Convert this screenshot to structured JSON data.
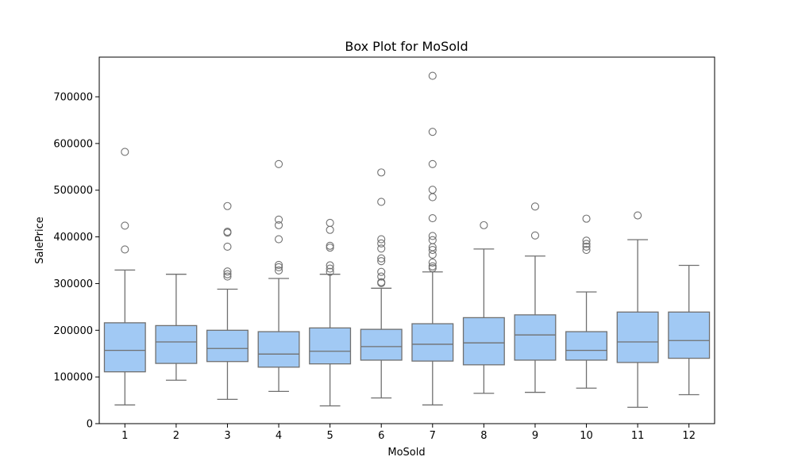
{
  "chart_data": {
    "type": "box",
    "title": "Box Plot for MoSold",
    "xlabel": "MoSold",
    "ylabel": "SalePrice",
    "categories": [
      "1",
      "2",
      "3",
      "4",
      "5",
      "6",
      "7",
      "8",
      "9",
      "10",
      "11",
      "12"
    ],
    "yticks": [
      0,
      100000,
      200000,
      300000,
      400000,
      500000,
      600000,
      700000
    ],
    "ylim": [
      0,
      785000
    ],
    "grid": false,
    "colors": {
      "box_fill": "#a1c9f4",
      "line": "#707070"
    },
    "boxes": [
      {
        "category": "1",
        "whisker_low": 40000,
        "q1": 111000,
        "median": 157000,
        "q3": 216000,
        "whisker_high": 329000,
        "outliers": [
          373000,
          424000,
          582000
        ]
      },
      {
        "category": "2",
        "whisker_low": 93000,
        "q1": 129000,
        "median": 175000,
        "q3": 210000,
        "whisker_high": 320000,
        "outliers": []
      },
      {
        "category": "3",
        "whisker_low": 52000,
        "q1": 133000,
        "median": 161000,
        "q3": 200000,
        "whisker_high": 288000,
        "outliers": [
          315000,
          320000,
          326000,
          379000,
          409000,
          411000,
          466000
        ]
      },
      {
        "category": "4",
        "whisker_low": 69000,
        "q1": 121000,
        "median": 149000,
        "q3": 197000,
        "whisker_high": 311000,
        "outliers": [
          328000,
          335000,
          340000,
          395000,
          425000,
          437000,
          556000
        ]
      },
      {
        "category": "5",
        "whisker_low": 38000,
        "q1": 128000,
        "median": 155000,
        "q3": 205000,
        "whisker_high": 320000,
        "outliers": [
          325000,
          332000,
          339000,
          377000,
          381000,
          415000,
          430000
        ]
      },
      {
        "category": "6",
        "whisker_low": 55000,
        "q1": 136000,
        "median": 165000,
        "q3": 202000,
        "whisker_high": 290000,
        "outliers": [
          301000,
          303000,
          315000,
          325000,
          348000,
          354000,
          375000,
          386000,
          395000,
          475000,
          538000
        ]
      },
      {
        "category": "7",
        "whisker_low": 40000,
        "q1": 134000,
        "median": 170000,
        "q3": 214000,
        "whisker_high": 325000,
        "outliers": [
          333000,
          337000,
          345000,
          362000,
          372000,
          378000,
          393000,
          402000,
          440000,
          485000,
          501000,
          556000,
          625000,
          745000
        ]
      },
      {
        "category": "8",
        "whisker_low": 65000,
        "q1": 126000,
        "median": 173000,
        "q3": 227000,
        "whisker_high": 374000,
        "outliers": [
          425000
        ]
      },
      {
        "category": "9",
        "whisker_low": 67000,
        "q1": 136000,
        "median": 190000,
        "q3": 233000,
        "whisker_high": 359000,
        "outliers": [
          403000,
          465000
        ]
      },
      {
        "category": "10",
        "whisker_low": 76000,
        "q1": 136000,
        "median": 157000,
        "q3": 197000,
        "whisker_high": 282000,
        "outliers": [
          372000,
          379000,
          385000,
          392000,
          439000
        ]
      },
      {
        "category": "11",
        "whisker_low": 35000,
        "q1": 131000,
        "median": 175000,
        "q3": 239000,
        "whisker_high": 394000,
        "outliers": [
          446000
        ]
      },
      {
        "category": "12",
        "whisker_low": 62000,
        "q1": 140000,
        "median": 178000,
        "q3": 239000,
        "whisker_high": 339000,
        "outliers": []
      }
    ]
  }
}
